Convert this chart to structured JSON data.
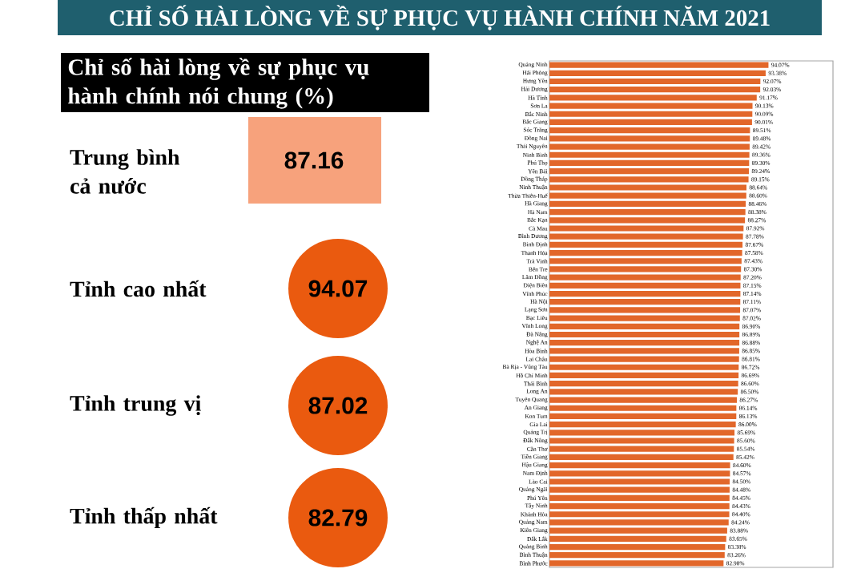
{
  "chart_data": [
    {
      "type": "other",
      "title": "CHỈ SỐ HÀI LÒNG VỀ SỰ PHỤC VỤ HÀNH CHÍNH NĂM 2021",
      "subtitle": "Chỉ số hài lòng về sự phục vụ hành chính nói chung (%)",
      "categories": [
        "Trung bình cả nước",
        "Tỉnh cao nhất",
        "Tỉnh trung vị",
        "Tỉnh thấp nhất"
      ],
      "value_labels": [
        "87.16",
        "94.07",
        "87.02",
        "82.79"
      ],
      "colors": [
        "#f7a27c",
        "#ea5a0f",
        "#ea5a0f",
        "#ea5a0f"
      ]
    },
    {
      "type": "bar",
      "orientation": "horizontal",
      "color": "#e2672a",
      "xlim": [
        40,
        110
      ],
      "tick_labels": "y",
      "categories": [
        "Quảng Ninh",
        "Hải Phòng",
        "Hưng Yên",
        "Hải Dương",
        "Hà Tĩnh",
        "Sơn La",
        "Bắc Ninh",
        "Bắc Giang",
        "Sóc Trăng",
        "Đồng Nai",
        "Thái Nguyên",
        "Ninh Bình",
        "Phú Thọ",
        "Yên Bái",
        "Đồng Tháp",
        "Ninh Thuận",
        "Thừa Thiên-Huế",
        "Hà Giang",
        "Hà Nam",
        "Bắc Kạn",
        "Cà Mau",
        "Bình Dương",
        "Bình Định",
        "Thanh Hóa",
        "Trà Vinh",
        "Bến Tre",
        "Lâm Đồng",
        "Điện Biên",
        "Vĩnh Phúc",
        "Hà Nội",
        "Lạng Sơn",
        "Bạc Liêu",
        "Vĩnh Long",
        "Đà Nẵng",
        "Nghệ An",
        "Hòa Bình",
        "Lai Châu",
        "Bà Rịa - Vũng Tàu",
        "Hồ Chí Minh",
        "Thái Bình",
        "Long An",
        "Tuyên Quang",
        "An Giang",
        "Kon Tum",
        "Gia Lai",
        "Quảng Trị",
        "Đắk Nông",
        "Cần Thơ",
        "Tiền Giang",
        "Hậu Giang",
        "Nam Định",
        "Lào Cai",
        "Quảng Ngãi",
        "Phú Yên",
        "Tây Ninh",
        "Khánh Hòa",
        "Quảng Nam",
        "Kiên Giang",
        "Đắk Lắk",
        "Quảng Bình",
        "Bình Thuận",
        "Bình Phước"
      ],
      "values": [
        94.07,
        93.38,
        92.07,
        92.03,
        91.17,
        90.13,
        90.09,
        90.01,
        89.51,
        89.48,
        89.42,
        89.36,
        89.3,
        89.24,
        89.15,
        88.64,
        88.6,
        88.46,
        88.38,
        88.27,
        87.92,
        87.78,
        87.67,
        87.58,
        87.43,
        87.3,
        87.2,
        87.15,
        87.14,
        87.11,
        87.07,
        87.02,
        86.9,
        86.89,
        86.88,
        86.85,
        86.81,
        86.72,
        86.69,
        86.6,
        86.5,
        86.27,
        86.14,
        86.13,
        86.0,
        85.69,
        85.6,
        85.54,
        85.42,
        84.6,
        84.57,
        84.5,
        84.48,
        84.45,
        84.43,
        84.4,
        84.24,
        83.88,
        83.65,
        83.38,
        83.26,
        82.98
      ],
      "value_labels": [
        "94.07%",
        "93.38%",
        "92.07%",
        "92.03%",
        "91.17%",
        "90.13%",
        "90.09%",
        "90.01%",
        "89.51%",
        "89.48%",
        "89.42%",
        "89.36%",
        "89.30%",
        "89.24%",
        "89.15%",
        "88.64%",
        "88.60%",
        "88.46%",
        "88.38%",
        "88.27%",
        "87.92%",
        "87.78%",
        "87.67%",
        "87.58%",
        "87.43%",
        "87.30%",
        "87.20%",
        "87.15%",
        "87.14%",
        "87.11%",
        "87.07%",
        "87.02%",
        "86.90%",
        "86.89%",
        "86.88%",
        "86.85%",
        "86.81%",
        "86.72%",
        "86.69%",
        "86.60%",
        "86.50%",
        "86.27%",
        "86.14%",
        "86.13%",
        "86.00%",
        "85.69%",
        "85.60%",
        "85.54%",
        "85.42%",
        "84.60%",
        "84.57%",
        "84.50%",
        "84.48%",
        "84.45%",
        "84.43%",
        "84.40%",
        "84.24%",
        "83.88%",
        "83.65%",
        "83.38%",
        "83.26%",
        "82.98%"
      ]
    }
  ]
}
